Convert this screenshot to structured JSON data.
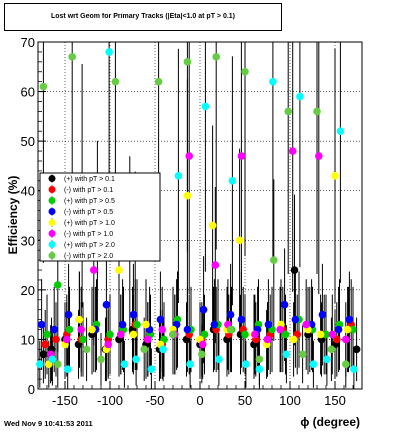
{
  "title": "Lost wrt Geom for Primary Tracks (|Eta|<1.0 at pT > 0.1)",
  "footer": "Wed Nov  9 10:41:53 2011",
  "chart_data": {
    "type": "scatter",
    "title": "Lost wrt Geom for Primary Tracks (|Eta|<1.0 at pT > 0.1)",
    "xlabel": "ϕ (degree)",
    "ylabel": "Efficiency (%)",
    "xlim": [
      -180,
      180
    ],
    "ylim": [
      0,
      70
    ],
    "xticks": [
      -150,
      -100,
      -50,
      0,
      50,
      100,
      150
    ],
    "yticks": [
      0,
      10,
      20,
      30,
      40,
      50,
      60,
      70
    ],
    "grid": true,
    "legend_position": "middle-left",
    "series": [
      {
        "name": "(+) with pT > 0.1",
        "color": "#000000",
        "x": [
          -174,
          -165,
          -150,
          -135,
          -120,
          -105,
          -90,
          -75,
          -60,
          -45,
          -30,
          -15,
          0,
          15,
          30,
          45,
          60,
          75,
          90,
          105,
          120,
          135,
          150,
          165,
          174
        ],
        "y": [
          7,
          8,
          10,
          9,
          11,
          8,
          10,
          12,
          9,
          8,
          11,
          10,
          9,
          12,
          10,
          11,
          9,
          10,
          12,
          24,
          11,
          10,
          9,
          12,
          8
        ]
      },
      {
        "name": "(-) with pT > 0.1",
        "color": "#ff0000",
        "x": [
          -172,
          -160,
          -148,
          -132,
          -118,
          -102,
          -88,
          -72,
          -58,
          -42,
          -28,
          -12,
          2,
          18,
          32,
          48,
          62,
          78,
          92,
          108,
          122,
          138,
          152,
          168
        ],
        "y": [
          9,
          10,
          11,
          10,
          12,
          10,
          11,
          13,
          10,
          9,
          11,
          11,
          10,
          12,
          11,
          12,
          10,
          11,
          12,
          11,
          12,
          11,
          10,
          13
        ]
      },
      {
        "name": "(+) with pT > 0.5",
        "color": "#00cc00",
        "x": [
          -170,
          -158,
          -145,
          -130,
          -115,
          -100,
          -85,
          -70,
          -55,
          -40,
          -25,
          -10,
          5,
          20,
          35,
          50,
          65,
          80,
          95,
          110,
          125,
          140,
          155,
          170
        ],
        "y": [
          11,
          21,
          12,
          10,
          13,
          11,
          12,
          13,
          11,
          10,
          14,
          12,
          11,
          13,
          12,
          11,
          13,
          12,
          11,
          14,
          12,
          11,
          13,
          12
        ]
      },
      {
        "name": "(-) with pT > 0.5",
        "color": "#0000ff",
        "x": [
          -176,
          -162,
          -146,
          -134,
          -116,
          -104,
          -86,
          -74,
          -56,
          -44,
          -26,
          -14,
          4,
          16,
          34,
          46,
          64,
          76,
          94,
          106,
          124,
          136,
          154,
          166
        ],
        "y": [
          13,
          12,
          15,
          14,
          12,
          17,
          13,
          15,
          12,
          14,
          13,
          12,
          16,
          13,
          15,
          14,
          12,
          13,
          17,
          14,
          13,
          15,
          12,
          14
        ]
      },
      {
        "name": "(+) with pT > 1.0",
        "color": "#ffff00",
        "x": [
          -168,
          -150,
          -134,
          -120,
          -104,
          -90,
          -74,
          -60,
          -44,
          -30,
          -14,
          0,
          14,
          30,
          44,
          60,
          74,
          90,
          104,
          120,
          134,
          150,
          164
        ],
        "y": [
          5,
          9,
          14,
          12,
          8,
          24,
          11,
          13,
          9,
          12,
          39,
          10,
          33,
          12,
          30,
          11,
          9,
          13,
          10,
          12,
          11,
          43,
          12
        ]
      },
      {
        "name": "(-) with pT > 1.0",
        "color": "#ff00ff",
        "x": [
          -166,
          -148,
          -132,
          -118,
          -102,
          -88,
          -72,
          -58,
          -42,
          -28,
          -12,
          3,
          17,
          31,
          46,
          61,
          75,
          89,
          103,
          118,
          132,
          147,
          162
        ],
        "y": [
          7,
          10,
          12,
          24,
          9,
          11,
          27,
          10,
          12,
          11,
          47,
          9,
          25,
          13,
          47,
          11,
          10,
          12,
          48,
          13,
          47,
          11,
          10
        ]
      },
      {
        "name": "(+) with pT > 2.0",
        "color": "#00ffff",
        "x": [
          -178,
          -164,
          -147,
          -131,
          -114,
          -101,
          -84,
          -71,
          -54,
          -41,
          -24,
          -11,
          6,
          21,
          36,
          51,
          66,
          81,
          96,
          111,
          126,
          141,
          156,
          171
        ],
        "y": [
          5,
          6,
          4,
          41,
          31,
          68,
          5,
          6,
          4,
          8,
          43,
          5,
          57,
          6,
          42,
          5,
          4,
          62,
          7,
          59,
          5,
          6,
          52,
          4
        ]
      },
      {
        "name": "(-) with pT > 2.0",
        "color": "#66cc44",
        "x": [
          -174,
          -158,
          -142,
          -126,
          -110,
          -94,
          -78,
          -62,
          -46,
          -30,
          -14,
          2,
          18,
          34,
          50,
          66,
          82,
          98,
          114,
          130,
          146,
          162
        ],
        "y": [
          61,
          5,
          67,
          8,
          6,
          62,
          29,
          8,
          62,
          11,
          66,
          7,
          67,
          12,
          64,
          6,
          26,
          56,
          7,
          56,
          8,
          5
        ]
      }
    ]
  }
}
